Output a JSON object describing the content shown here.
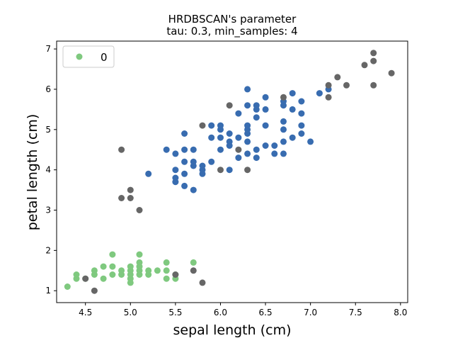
{
  "chart_data": {
    "type": "scatter",
    "title_line1": "HRDBSCAN's parameter",
    "title_line2": "tau: 0.3, min_samples: 4",
    "xlabel": "sepal length (cm)",
    "ylabel": "petal length (cm)",
    "xlim": [
      4.18,
      8.08
    ],
    "ylim": [
      0.705,
      7.195
    ],
    "xticks": [
      "4.5",
      "5.0",
      "5.5",
      "6.0",
      "6.5",
      "7.0",
      "7.5",
      "8.0"
    ],
    "xtick_values": [
      4.5,
      5.0,
      5.5,
      6.0,
      6.5,
      7.0,
      7.5,
      8.0
    ],
    "yticks": [
      "1",
      "2",
      "3",
      "4",
      "5",
      "6",
      "7"
    ],
    "ytick_values": [
      1,
      2,
      3,
      4,
      5,
      6,
      7
    ],
    "grid": false,
    "legend": {
      "position": "top-left",
      "entries": [
        {
          "label": "0",
          "color": "#7fc97f"
        }
      ]
    },
    "series": [
      {
        "name": "0",
        "color": "#7fc97f",
        "points": [
          [
            4.3,
            1.1
          ],
          [
            4.4,
            1.3
          ],
          [
            4.4,
            1.4
          ],
          [
            4.5,
            1.3
          ],
          [
            4.6,
            1.4
          ],
          [
            4.6,
            1.5
          ],
          [
            4.7,
            1.3
          ],
          [
            4.7,
            1.6
          ],
          [
            4.8,
            1.6
          ],
          [
            4.8,
            1.9
          ],
          [
            4.8,
            1.4
          ],
          [
            4.9,
            1.4
          ],
          [
            4.9,
            1.5
          ],
          [
            5.0,
            1.2
          ],
          [
            5.0,
            1.3
          ],
          [
            5.0,
            1.4
          ],
          [
            5.0,
            1.5
          ],
          [
            5.0,
            1.6
          ],
          [
            5.1,
            1.4
          ],
          [
            5.1,
            1.5
          ],
          [
            5.1,
            1.7
          ],
          [
            5.1,
            1.9
          ],
          [
            5.1,
            1.6
          ],
          [
            5.2,
            1.4
          ],
          [
            5.2,
            1.5
          ],
          [
            5.3,
            1.5
          ],
          [
            5.4,
            1.3
          ],
          [
            5.4,
            1.5
          ],
          [
            5.4,
            1.7
          ],
          [
            5.5,
            1.3
          ],
          [
            5.5,
            1.4
          ],
          [
            5.7,
            1.7
          ]
        ]
      },
      {
        "name": "",
        "color": "#386cb0",
        "points": [
          [
            5.2,
            3.9
          ],
          [
            5.4,
            4.5
          ],
          [
            5.5,
            3.7
          ],
          [
            5.5,
            3.8
          ],
          [
            5.5,
            4.0
          ],
          [
            5.5,
            4.4
          ],
          [
            5.6,
            3.6
          ],
          [
            5.6,
            3.9
          ],
          [
            5.6,
            4.2
          ],
          [
            5.6,
            4.5
          ],
          [
            5.6,
            4.9
          ],
          [
            5.7,
            3.5
          ],
          [
            5.7,
            4.1
          ],
          [
            5.7,
            4.2
          ],
          [
            5.7,
            4.5
          ],
          [
            5.8,
            3.9
          ],
          [
            5.8,
            4.0
          ],
          [
            5.8,
            4.1
          ],
          [
            5.9,
            4.2
          ],
          [
            5.9,
            4.8
          ],
          [
            5.9,
            5.1
          ],
          [
            6.0,
            4.5
          ],
          [
            6.0,
            4.8
          ],
          [
            6.0,
            5.0
          ],
          [
            6.0,
            5.1
          ],
          [
            6.1,
            4.0
          ],
          [
            6.1,
            4.6
          ],
          [
            6.1,
            4.7
          ],
          [
            6.1,
            4.9
          ],
          [
            6.2,
            4.3
          ],
          [
            6.2,
            4.8
          ],
          [
            6.2,
            5.4
          ],
          [
            6.3,
            4.4
          ],
          [
            6.3,
            4.7
          ],
          [
            6.3,
            4.9
          ],
          [
            6.3,
            5.0
          ],
          [
            6.3,
            5.1
          ],
          [
            6.3,
            5.6
          ],
          [
            6.3,
            6.0
          ],
          [
            6.4,
            4.3
          ],
          [
            6.4,
            4.5
          ],
          [
            6.4,
            5.3
          ],
          [
            6.4,
            5.5
          ],
          [
            6.4,
            5.6
          ],
          [
            6.5,
            4.6
          ],
          [
            6.5,
            5.1
          ],
          [
            6.5,
            5.5
          ],
          [
            6.5,
            5.8
          ],
          [
            6.6,
            4.6
          ],
          [
            6.7,
            4.4
          ],
          [
            6.7,
            4.7
          ],
          [
            6.7,
            5.0
          ],
          [
            6.7,
            5.2
          ],
          [
            6.7,
            5.6
          ],
          [
            6.7,
            5.7
          ],
          [
            6.8,
            4.8
          ],
          [
            6.8,
            5.5
          ],
          [
            6.8,
            5.9
          ],
          [
            6.9,
            4.9
          ],
          [
            6.9,
            5.1
          ],
          [
            6.9,
            5.4
          ],
          [
            6.9,
            5.7
          ],
          [
            7.0,
            4.7
          ],
          [
            7.1,
            5.9
          ],
          [
            7.2,
            6.0
          ],
          [
            6.6,
            4.4
          ]
        ]
      },
      {
        "name": "",
        "color": "#666666",
        "points": [
          [
            4.5,
            1.3
          ],
          [
            4.6,
            1.0
          ],
          [
            5.5,
            1.4
          ],
          [
            5.7,
            1.5
          ],
          [
            5.8,
            1.2
          ],
          [
            4.9,
            4.5
          ],
          [
            4.9,
            3.3
          ],
          [
            5.0,
            3.3
          ],
          [
            5.0,
            3.5
          ],
          [
            5.1,
            3.0
          ],
          [
            5.8,
            5.1
          ],
          [
            6.0,
            4.0
          ],
          [
            6.1,
            5.6
          ],
          [
            6.2,
            4.5
          ],
          [
            6.3,
            4.0
          ],
          [
            6.7,
            5.8
          ],
          [
            7.2,
            5.8
          ],
          [
            7.2,
            6.1
          ],
          [
            7.3,
            6.3
          ],
          [
            7.4,
            6.1
          ],
          [
            7.6,
            6.6
          ],
          [
            7.7,
            6.1
          ],
          [
            7.7,
            6.7
          ],
          [
            7.7,
            6.9
          ],
          [
            7.9,
            6.4
          ]
        ]
      }
    ]
  }
}
